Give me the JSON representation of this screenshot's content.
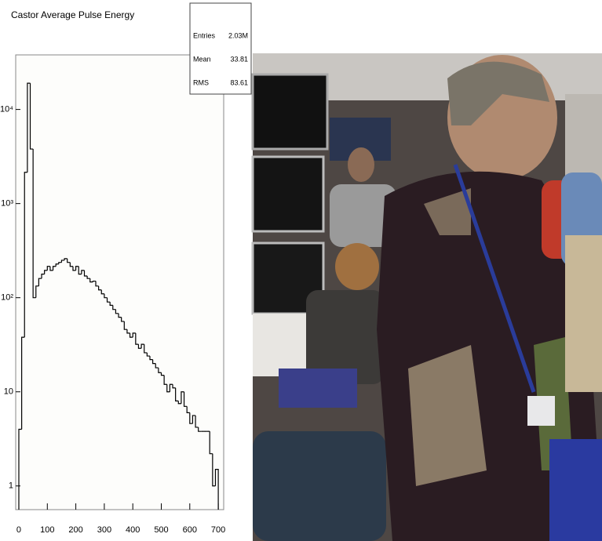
{
  "chart_data": {
    "type": "histogram",
    "title": "Castor Average Pulse Energy",
    "stats": [
      {
        "label": "Entries",
        "value": "2.03M"
      },
      {
        "label": "Mean",
        "value": 33.81
      },
      {
        "label": "RMS",
        "value": 83.61
      }
    ],
    "bins": [
      0,
      10,
      20,
      30,
      40,
      50,
      60,
      70,
      80,
      90,
      100,
      110,
      120,
      130,
      140,
      150,
      160,
      170,
      180,
      190,
      200,
      210,
      220,
      230,
      240,
      250,
      260,
      270,
      280,
      290,
      300,
      310,
      320,
      330,
      340,
      350,
      360,
      370,
      380,
      390,
      400,
      410,
      420,
      430,
      440,
      450,
      460,
      470,
      480,
      490,
      500,
      510,
      520,
      530,
      540,
      550,
      560,
      570,
      580,
      590,
      600,
      610,
      620,
      630,
      640,
      650,
      660,
      670,
      680,
      690,
      700
    ],
    "counts": [
      4,
      38,
      2150,
      19000,
      3800,
      100,
      133,
      160,
      178,
      195,
      215,
      195,
      215,
      228,
      237,
      250,
      260,
      237,
      215,
      195,
      215,
      178,
      195,
      170,
      160,
      147,
      150,
      133,
      121,
      110,
      100,
      90,
      83,
      75,
      68,
      62,
      56,
      46,
      42,
      38,
      42,
      32,
      29,
      32,
      26,
      24,
      22,
      20,
      18,
      16,
      15,
      12,
      10,
      12,
      11,
      8,
      7.5,
      10,
      7,
      6,
      4.6,
      5.6,
      4.2,
      3.8,
      3.8,
      3.8,
      3.8,
      2.2,
      1,
      1.5
    ],
    "color": "#000000",
    "log_y": true,
    "xlim": [
      -11,
      719
    ],
    "xticks": [
      0,
      100,
      200,
      300,
      400,
      500,
      600,
      700
    ],
    "ylim": [
      0.56,
      38000
    ],
    "yticks": [
      1,
      10,
      {
        "value": 100,
        "label": "10²"
      },
      {
        "value": 1000,
        "label": "10³"
      },
      {
        "value": 10000,
        "label": "10⁴"
      }
    ]
  }
}
